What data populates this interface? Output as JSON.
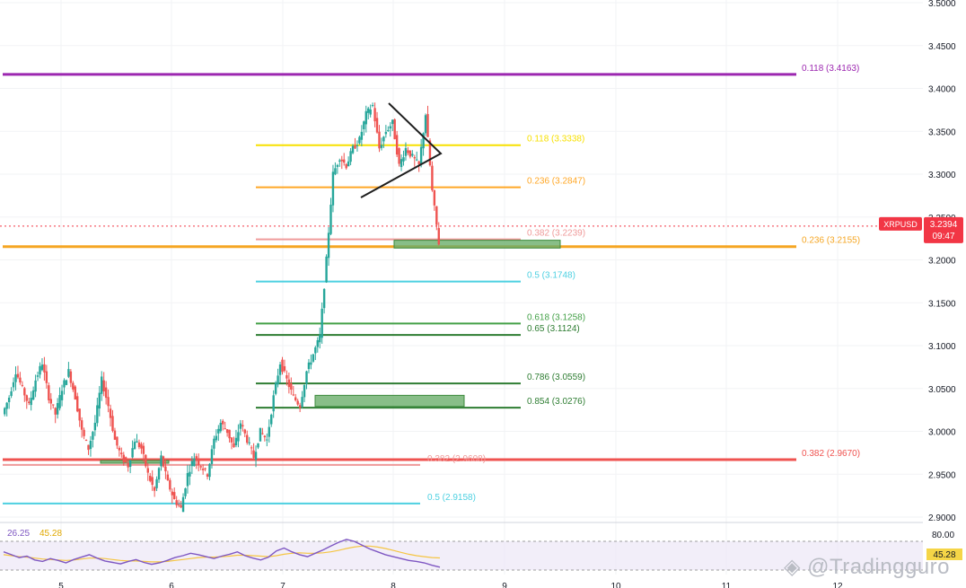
{
  "chart_data": {
    "type": "candlestick",
    "symbol": "XRPUSD",
    "price_axis": {
      "range": [
        2.9,
        3.5
      ],
      "ticks": [
        "3.5000",
        "3.4500",
        "3.4000",
        "3.3500",
        "3.3000",
        "3.2500",
        "3.2000",
        "3.1500",
        "3.1000",
        "3.0500",
        "3.0000",
        "2.9500",
        "2.9000"
      ]
    },
    "date_axis": {
      "ticks": [
        "5",
        "6",
        "7",
        "8",
        "9",
        "10",
        "11",
        "12"
      ]
    },
    "current_price": {
      "symbol": "XRPUSD",
      "value": "3.2394",
      "countdown": "09:47",
      "color": "#f23645"
    },
    "fib_levels": [
      {
        "label": "0.118 (3.4163)",
        "price": 3.4163,
        "color": "#9c27b0",
        "set": "long"
      },
      {
        "label": "0.236 (3.2155)",
        "price": 3.2155,
        "color": "#f5a623",
        "set": "long"
      },
      {
        "label": "0.382 (2.9670)",
        "price": 2.967,
        "color": "#ef5350",
        "set": "long"
      },
      {
        "label": "0.118 (3.3338)",
        "price": 3.3338,
        "color": "#f7e000",
        "set": "mid"
      },
      {
        "label": "0.236 (3.2847)",
        "price": 3.2847,
        "color": "#ffa726",
        "set": "mid"
      },
      {
        "label": "0.382 (3.2239)",
        "price": 3.2239,
        "color": "#ef9a9a",
        "set": "mid"
      },
      {
        "label": "0.5 (3.1748)",
        "price": 3.1748,
        "color": "#4dd0e1",
        "set": "mid"
      },
      {
        "label": "0.618 (3.1258)",
        "price": 3.1258,
        "color": "#43a047",
        "set": "mid"
      },
      {
        "label": "0.65 (3.1124)",
        "price": 3.1124,
        "color": "#2e7d32",
        "set": "mid"
      },
      {
        "label": "0.786 (3.0559)",
        "price": 3.0559,
        "color": "#2e7d32",
        "set": "mid"
      },
      {
        "label": "0.854 (3.0276)",
        "price": 3.0276,
        "color": "#2e7d32",
        "set": "mid"
      },
      {
        "label": "0.382 (2.9608)",
        "price": 2.9608,
        "color": "#ef9a9a",
        "set": "short"
      },
      {
        "label": "0.5 (2.9158)",
        "price": 2.9158,
        "color": "#4dd0e1",
        "set": "short"
      }
    ],
    "zones": [
      {
        "name": "demand-zone-upper",
        "price_low": 3.2138,
        "price_high": 3.2229,
        "color": "#6aae6a"
      },
      {
        "name": "demand-zone-middle",
        "price_low": 3.029,
        "price_high": 3.042,
        "color": "#6aae6a"
      },
      {
        "name": "demand-zone-lower",
        "price_low": 2.963,
        "price_high": 2.966,
        "color": "#6aae6a"
      }
    ],
    "price_path": [
      3.02,
      3.04,
      3.07,
      3.05,
      3.03,
      3.06,
      3.08,
      3.04,
      3.02,
      3.05,
      3.07,
      3.04,
      3.0,
      2.98,
      3.01,
      3.06,
      3.03,
      2.99,
      2.97,
      2.96,
      2.99,
      2.98,
      2.95,
      2.93,
      2.97,
      2.94,
      2.92,
      2.91,
      2.95,
      2.97,
      2.96,
      2.95,
      2.99,
      3.01,
      3.0,
      2.98,
      3.01,
      2.99,
      2.97,
      3.0,
      2.99,
      3.04,
      3.08,
      3.06,
      3.04,
      3.03,
      3.07,
      3.09,
      3.11,
      3.2,
      3.3,
      3.32,
      3.31,
      3.33,
      3.34,
      3.37,
      3.38,
      3.33,
      3.35,
      3.36,
      3.31,
      3.33,
      3.32,
      3.31,
      3.37,
      3.28,
      3.22
    ],
    "rsi": {
      "label_value": "26.25",
      "label_ma": "45.28",
      "upper": "80.00",
      "current": "45.28",
      "values": [
        58,
        52,
        46,
        49,
        41,
        38,
        44,
        40,
        35,
        42,
        47,
        52,
        45,
        39,
        36,
        33,
        38,
        42,
        36,
        32,
        35,
        40,
        46,
        50,
        55,
        52,
        48,
        44,
        49,
        53,
        58,
        50,
        45,
        41,
        47,
        60,
        66,
        58,
        52,
        48,
        55,
        62,
        70,
        78,
        84,
        80,
        72,
        64,
        58,
        52,
        48,
        44,
        40,
        38,
        35,
        30,
        26
      ],
      "ma_values": [
        52,
        50,
        48,
        47,
        45,
        43,
        42,
        41,
        40,
        41,
        43,
        45,
        45,
        44,
        42,
        40,
        39,
        39,
        38,
        37,
        37,
        38,
        40,
        42,
        44,
        46,
        47,
        47,
        48,
        49,
        51,
        51,
        50,
        49,
        48,
        50,
        53,
        55,
        56,
        55,
        55,
        56,
        58,
        61,
        65,
        68,
        70,
        70,
        68,
        65,
        61,
        57,
        53,
        50,
        48,
        46,
        45.28
      ]
    },
    "pattern": "triangle"
  },
  "watermark": "@Tradingguro"
}
